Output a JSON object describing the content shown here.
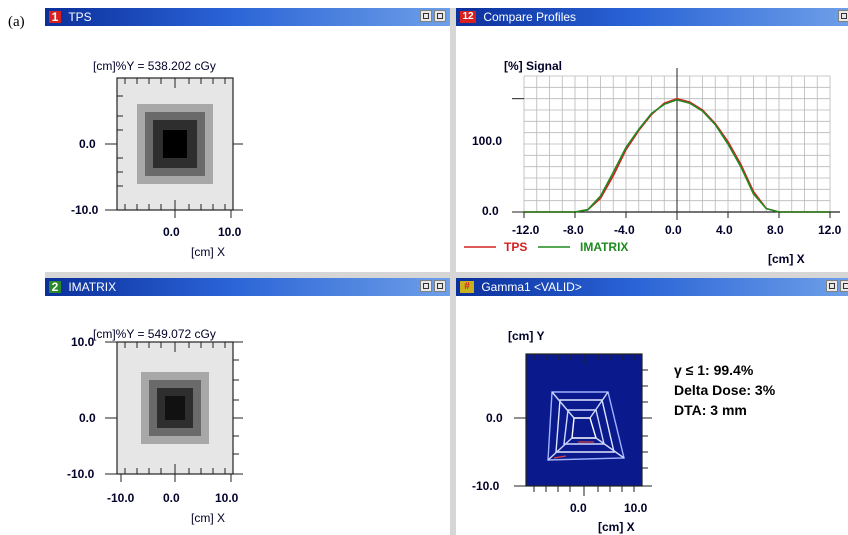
{
  "figure_label": "(a)",
  "panels": {
    "tps": {
      "number": "1",
      "title": "TPS",
      "dose_readout": "[cm]%Y = 538.202 cGy",
      "y_ticks": [
        "0.0",
        "-10.0"
      ],
      "x_ticks": [
        "0.0",
        "10.0"
      ],
      "x_label": "[cm] X"
    },
    "compare": {
      "number": "12",
      "title": "Compare Profiles",
      "y_label": "[%] Signal",
      "y_ticks": [
        "100.0",
        "0.0"
      ],
      "x_ticks": [
        "-12.0",
        "-8.0",
        "-4.0",
        "0.0",
        "4.0",
        "8.0",
        "12.0"
      ],
      "x_label": "[cm] X",
      "legend": [
        "TPS",
        "IMATRIX"
      ]
    },
    "imatrix": {
      "number": "2",
      "title": "IMATRIX",
      "dose_readout": "[cm]%Y = 549.072 cGy",
      "y_ticks": [
        "10.0",
        "0.0",
        "-10.0"
      ],
      "x_ticks": [
        "-10.0",
        "0.0",
        "10.0"
      ],
      "x_label": "[cm] X"
    },
    "gamma": {
      "title": "Gamma1 <VALID>",
      "y_label": "[cm] Y",
      "y_ticks": [
        "0.0",
        "-10.0"
      ],
      "x_ticks": [
        "0.0",
        "10.0"
      ],
      "x_label": "[cm] X",
      "stats": [
        "γ ≤ 1: 99.4%",
        "Delta Dose: 3%",
        "DTA: 3 mm"
      ]
    }
  },
  "colors": {
    "titlebar": "#0b2f9b",
    "tps_line": "#d42020",
    "imatrix_line": "#1f8a1f",
    "gamma_bg": "#0a1a8c"
  },
  "chart_data": {
    "type": "line",
    "title": "Compare Profiles",
    "xlabel": "[cm] X",
    "ylabel": "[%] Signal",
    "xlim": [
      -12,
      12
    ],
    "ylim": [
      0,
      100
    ],
    "x": [
      -12,
      -10,
      -8,
      -7,
      -6,
      -5,
      -4,
      -3,
      -2,
      -1,
      0,
      1,
      2,
      3,
      4,
      5,
      6,
      7,
      8,
      10,
      12
    ],
    "series": [
      {
        "name": "TPS",
        "values": [
          0,
          0,
          0,
          2,
          12,
          32,
          55,
          72,
          86,
          96,
          100,
          97,
          90,
          78,
          62,
          42,
          18,
          3,
          0,
          0,
          0
        ]
      },
      {
        "name": "IMATRIX",
        "values": [
          0,
          0,
          0,
          2,
          14,
          35,
          57,
          73,
          87,
          95,
          99,
          96,
          89,
          77,
          60,
          40,
          16,
          3,
          0,
          0,
          0
        ]
      }
    ]
  }
}
